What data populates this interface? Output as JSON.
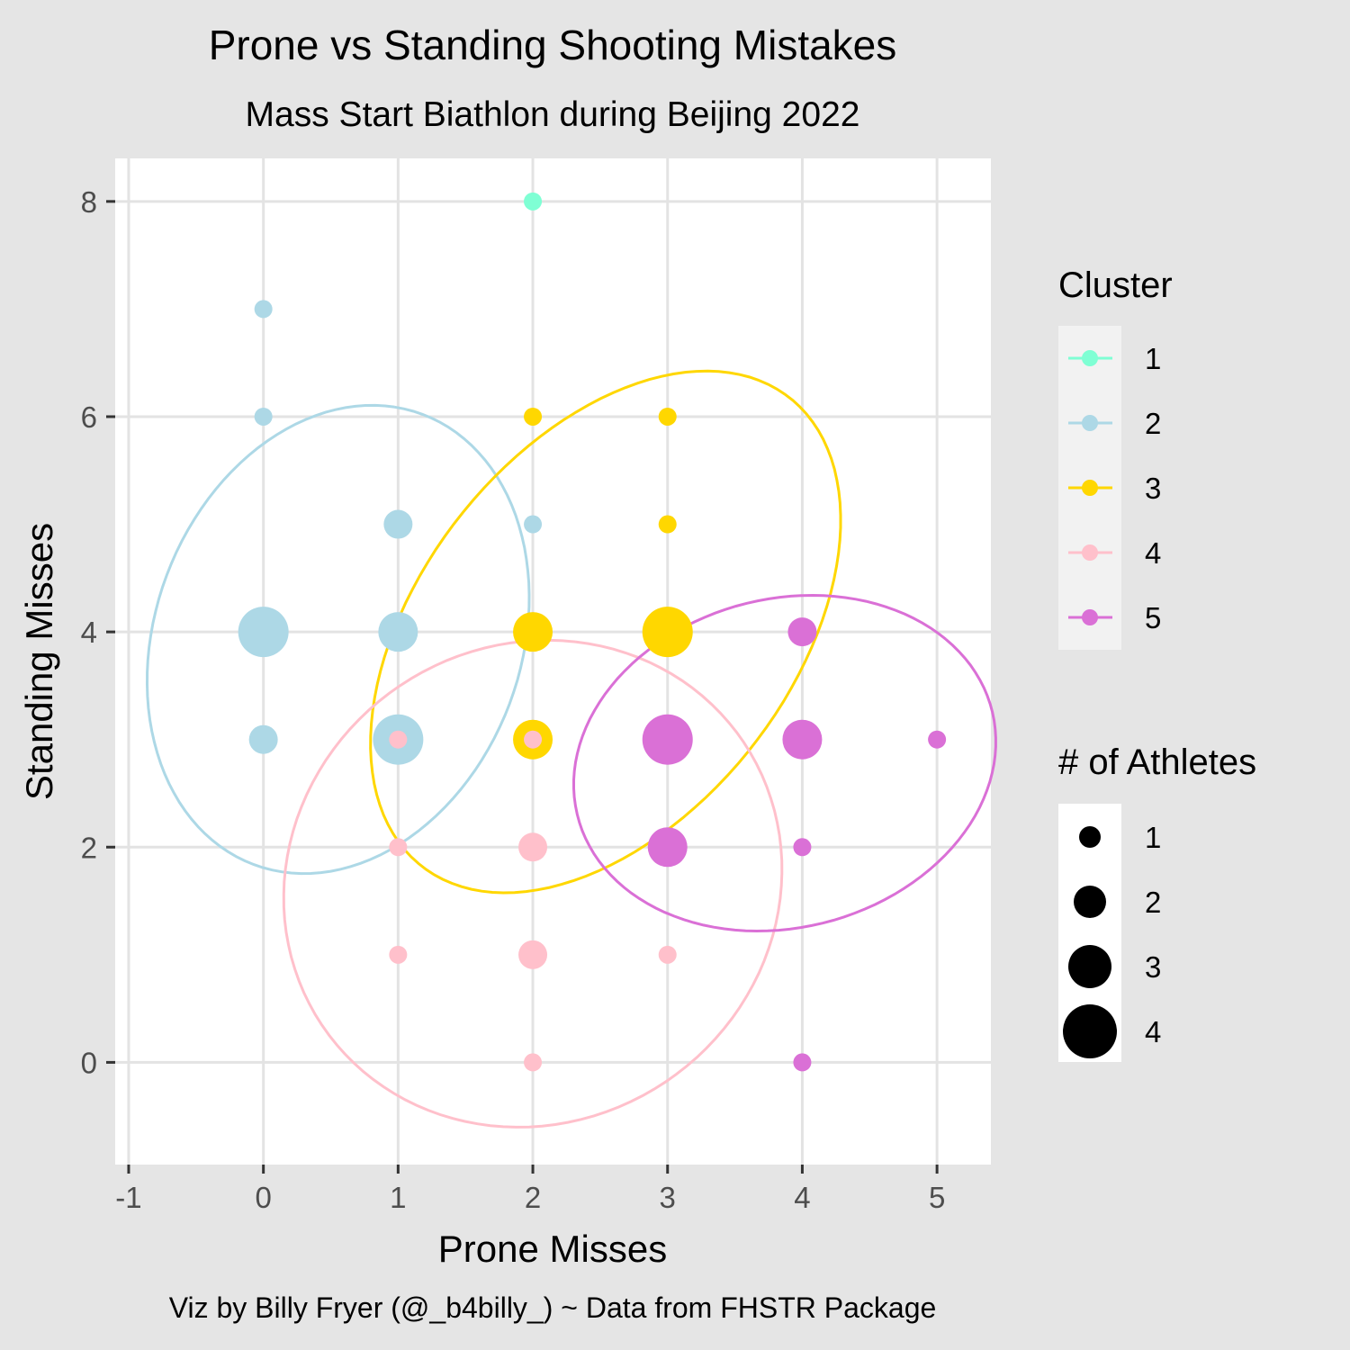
{
  "chart_data": {
    "type": "scatter",
    "title": "Prone vs Standing Shooting Mistakes",
    "subtitle": "Mass Start Biathlon during Beijing 2022",
    "xlabel": "Prone Misses",
    "ylabel": "Standing Misses",
    "caption": "Viz by Billy Fryer (@_b4billy_) ~ Data from FHSTR Package",
    "xlim": [
      -1.1,
      5.4
    ],
    "ylim": [
      -0.95,
      8.4
    ],
    "x_ticks": [
      -1,
      0,
      1,
      2,
      3,
      4,
      5
    ],
    "y_ticks": [
      0,
      2,
      4,
      6,
      8
    ],
    "grid": true,
    "legend_position": "right",
    "color_legend": {
      "title": "Cluster",
      "entries": [
        {
          "label": "1",
          "color": "#7fffd4"
        },
        {
          "label": "2",
          "color": "#add8e6"
        },
        {
          "label": "3",
          "color": "#ffd700"
        },
        {
          "label": "4",
          "color": "#ffc0cb"
        },
        {
          "label": "5",
          "color": "#da70d6"
        }
      ]
    },
    "size_legend": {
      "title": "# of Athletes",
      "entries": [
        {
          "label": "1",
          "value": 1
        },
        {
          "label": "2",
          "value": 2
        },
        {
          "label": "3",
          "value": 3
        },
        {
          "label": "4",
          "value": 4
        }
      ]
    },
    "points": [
      {
        "x": 2,
        "y": 8,
        "n": 1,
        "cluster": "1"
      },
      {
        "x": 0,
        "y": 7,
        "n": 1,
        "cluster": "2"
      },
      {
        "x": 0,
        "y": 6,
        "n": 1,
        "cluster": "2"
      },
      {
        "x": 1,
        "y": 5,
        "n": 2,
        "cluster": "2"
      },
      {
        "x": 2,
        "y": 5,
        "n": 1,
        "cluster": "2"
      },
      {
        "x": 0,
        "y": 4,
        "n": 4,
        "cluster": "2"
      },
      {
        "x": 1,
        "y": 4,
        "n": 3,
        "cluster": "2"
      },
      {
        "x": 0,
        "y": 3,
        "n": 2,
        "cluster": "2"
      },
      {
        "x": 1,
        "y": 3,
        "n": 4,
        "cluster": "2"
      },
      {
        "x": 2,
        "y": 6,
        "n": 1,
        "cluster": "3"
      },
      {
        "x": 3,
        "y": 6,
        "n": 1,
        "cluster": "3"
      },
      {
        "x": 3,
        "y": 5,
        "n": 1,
        "cluster": "3"
      },
      {
        "x": 2,
        "y": 4,
        "n": 3,
        "cluster": "3"
      },
      {
        "x": 3,
        "y": 4,
        "n": 4,
        "cluster": "3"
      },
      {
        "x": 2,
        "y": 3,
        "n": 3,
        "cluster": "3"
      },
      {
        "x": 1,
        "y": 3,
        "n": 1,
        "cluster": "4"
      },
      {
        "x": 2,
        "y": 3,
        "n": 1,
        "cluster": "4"
      },
      {
        "x": 1,
        "y": 2,
        "n": 1,
        "cluster": "4"
      },
      {
        "x": 2,
        "y": 2,
        "n": 2,
        "cluster": "4"
      },
      {
        "x": 1,
        "y": 1,
        "n": 1,
        "cluster": "4"
      },
      {
        "x": 2,
        "y": 1,
        "n": 2,
        "cluster": "4"
      },
      {
        "x": 3,
        "y": 1,
        "n": 1,
        "cluster": "4"
      },
      {
        "x": 2,
        "y": 0,
        "n": 1,
        "cluster": "4"
      },
      {
        "x": 4,
        "y": 4,
        "n": 2,
        "cluster": "5"
      },
      {
        "x": 3,
        "y": 3,
        "n": 4,
        "cluster": "5"
      },
      {
        "x": 4,
        "y": 3,
        "n": 3,
        "cluster": "5"
      },
      {
        "x": 5,
        "y": 3,
        "n": 1,
        "cluster": "5"
      },
      {
        "x": 3,
        "y": 2,
        "n": 3,
        "cluster": "5"
      },
      {
        "x": 4,
        "y": 2,
        "n": 1,
        "cluster": "5"
      },
      {
        "x": 4,
        "y": 0,
        "n": 1,
        "cluster": "5"
      }
    ],
    "ellipses": [
      {
        "cluster": "2",
        "cx": 0.555,
        "cy": 3.93,
        "rx": 2.2,
        "ry": 1.38,
        "angle_deg": 79
      },
      {
        "cluster": "3",
        "cx": 2.54,
        "cy": 4.0,
        "rx": 2.6,
        "ry": 1.47,
        "angle_deg": 64
      },
      {
        "cluster": "4",
        "cx": 2.0,
        "cy": 1.66,
        "rx": 2.27,
        "ry": 1.84,
        "angle_deg": 82
      },
      {
        "cluster": "5",
        "cx": 3.87,
        "cy": 2.78,
        "rx": 1.66,
        "ry": 1.46,
        "angle_deg": 44
      }
    ]
  }
}
